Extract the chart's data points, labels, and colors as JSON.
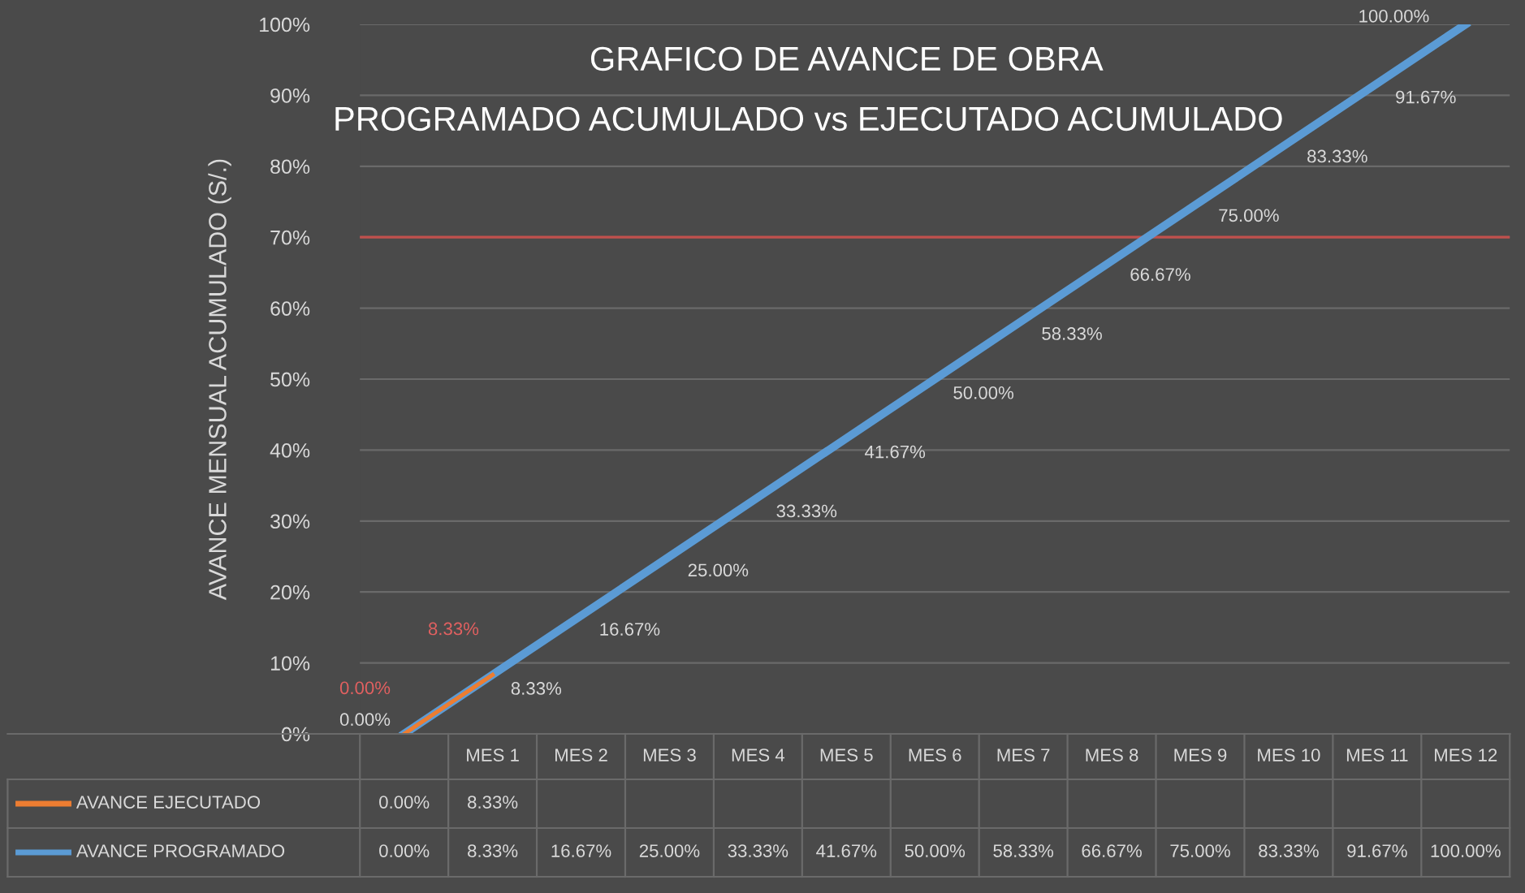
{
  "chart_data": {
    "type": "line",
    "title": "GRAFICO DE AVANCE DE OBRA",
    "subtitle": "PROGRAMADO ACUMULADO vs EJECUTADO ACUMULADO",
    "ylabel": "AVANCE MENSUAL ACUMULADO (S/.)",
    "categories": [
      null,
      "MES 1",
      "MES 2",
      "MES 3",
      "MES 4",
      "MES 5",
      "MES 6",
      "MES 7",
      "MES 8",
      "MES 9",
      "MES 10",
      "MES 11",
      "MES 12"
    ],
    "series": [
      {
        "name": "AVANCE EJECUTADO",
        "color": "#ed7d31",
        "values": [
          0,
          8.33,
          null,
          null,
          null,
          null,
          null,
          null,
          null,
          null,
          null,
          null,
          null
        ],
        "value_labels": [
          "0.00%",
          "8.33%",
          null,
          null,
          null,
          null,
          null,
          null,
          null,
          null,
          null,
          null,
          null
        ]
      },
      {
        "name": "AVANCE PROGRAMADO",
        "color": "#5b9bd5",
        "values": [
          0,
          8.33,
          16.67,
          25,
          33.33,
          41.67,
          50,
          58.33,
          66.67,
          75,
          83.33,
          91.67,
          100
        ],
        "value_labels": [
          "0.00%",
          "8.33%",
          "16.67%",
          "25.00%",
          "33.33%",
          "41.67%",
          "50.00%",
          "58.33%",
          "66.67%",
          "75.00%",
          "83.33%",
          "91.67%",
          "100.00%"
        ]
      }
    ],
    "ylim": [
      0,
      100
    ],
    "yticks": [
      {
        "value": 0,
        "label": "0%"
      },
      {
        "value": 10,
        "label": "10%"
      },
      {
        "value": 20,
        "label": "20%"
      },
      {
        "value": 30,
        "label": "30%"
      },
      {
        "value": 40,
        "label": "40%"
      },
      {
        "value": 50,
        "label": "50%"
      },
      {
        "value": 60,
        "label": "60%"
      },
      {
        "value": 70,
        "label": "70%"
      },
      {
        "value": 80,
        "label": "80%"
      },
      {
        "value": 90,
        "label": "90%"
      },
      {
        "value": 100,
        "label": "100%"
      }
    ],
    "ref_lines": [
      {
        "axis": "y",
        "value": 70,
        "color": "#c0504d"
      }
    ],
    "grid": "y",
    "legend": "bottom",
    "marker": "none",
    "line_style": "solid"
  }
}
